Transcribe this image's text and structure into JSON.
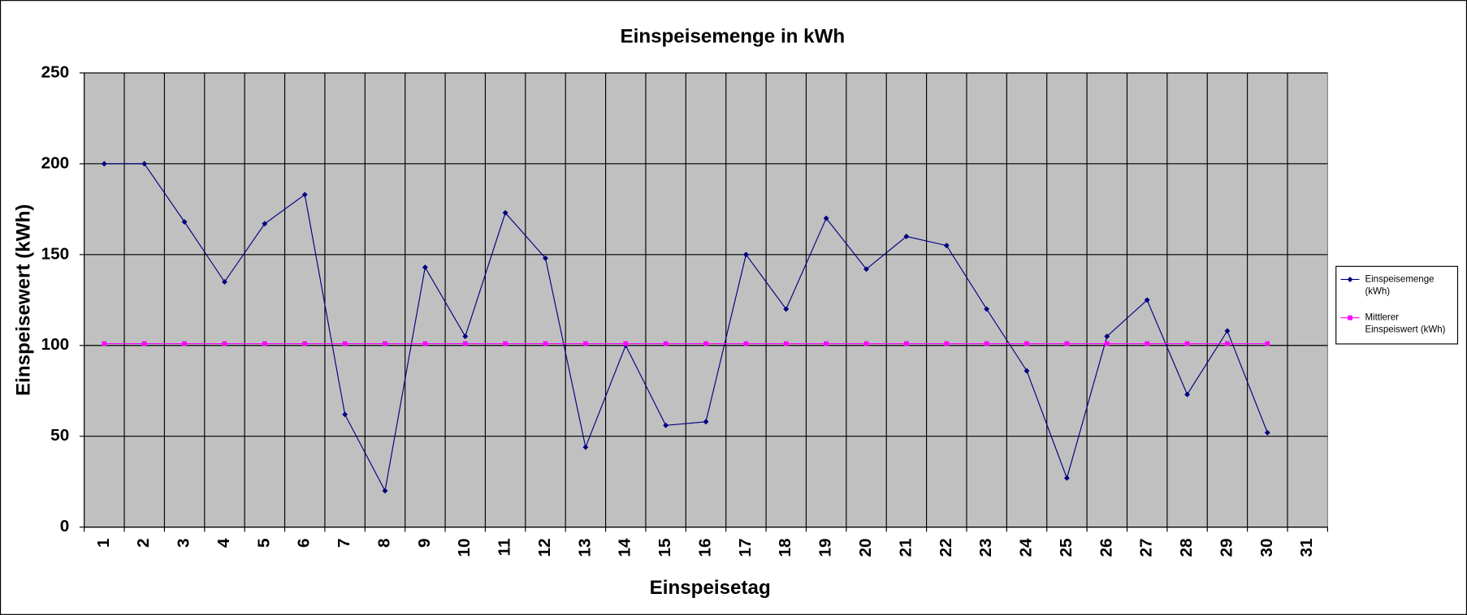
{
  "chart_data": {
    "type": "line",
    "title": "Einspeisemenge in kWh",
    "x_label": "Einspeisetag",
    "y_label": "Einspeisewert (kWh)",
    "categories": [
      "1",
      "2",
      "3",
      "4",
      "5",
      "6",
      "7",
      "8",
      "9",
      "10",
      "11",
      "12",
      "13",
      "14",
      "15",
      "16",
      "17",
      "18",
      "19",
      "20",
      "21",
      "22",
      "23",
      "24",
      "25",
      "26",
      "27",
      "28",
      "29",
      "30",
      "31"
    ],
    "series": [
      {
        "name": "Einspeisemenge (kWh)",
        "color": "#000080",
        "marker": "diamond",
        "values": [
          200,
          200,
          168,
          135,
          167,
          183,
          62,
          20,
          143,
          105,
          173,
          148,
          44,
          100,
          56,
          58,
          150,
          120,
          170,
          142,
          160,
          155,
          120,
          86,
          27,
          105,
          125,
          73,
          108,
          52,
          null
        ]
      },
      {
        "name": "Mittlerer Einspeiswert (kWh)",
        "color": "#ff00ff",
        "marker": "square",
        "values": [
          101,
          101,
          101,
          101,
          101,
          101,
          101,
          101,
          101,
          101,
          101,
          101,
          101,
          101,
          101,
          101,
          101,
          101,
          101,
          101,
          101,
          101,
          101,
          101,
          101,
          101,
          101,
          101,
          101,
          101,
          null
        ]
      }
    ],
    "ylim": [
      0,
      250
    ],
    "yticks": [
      0,
      50,
      100,
      150,
      200,
      250
    ],
    "grid": true,
    "plot_background": "#c0c0c0",
    "legend": "right"
  }
}
